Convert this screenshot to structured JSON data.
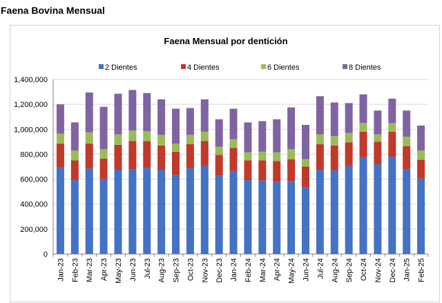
{
  "page": {
    "title": "Faena Bovina Mensual"
  },
  "chart_data": {
    "type": "bar",
    "stacked": true,
    "title": "Faena Mensual por dentición",
    "xlabel": "",
    "ylabel": "",
    "ylim": [
      0,
      1400000
    ],
    "yticks": [
      0,
      200000,
      400000,
      600000,
      800000,
      1000000,
      1200000,
      1400000
    ],
    "ytick_labels": [
      "0",
      "200,000",
      "400,000",
      "600,000",
      "800,000",
      "1,000,000",
      "1,200,000",
      "1,400,000"
    ],
    "grid": true,
    "legend_position": "top",
    "categories": [
      "Jan-23",
      "Feb-23",
      "Mar-23",
      "Apr-23",
      "May-23",
      "Jun-23",
      "Jul-23",
      "Aug-23",
      "Sep-23",
      "Oct-23",
      "Nov-23",
      "Dec-23",
      "Jan-24",
      "Feb-24",
      "Mar-24",
      "Apr-24",
      "May-24",
      "Jun-24",
      "Jul-24",
      "Aug-24",
      "Sep-24",
      "Oct-24",
      "Nov-24",
      "Dec-24",
      "Jan-25",
      "Feb-25"
    ],
    "series": [
      {
        "name": "2 Dientes",
        "color": "#4472c4",
        "values": [
          695000,
          595000,
          685000,
          600000,
          675000,
          680000,
          690000,
          675000,
          635000,
          690000,
          705000,
          630000,
          665000,
          595000,
          590000,
          580000,
          585000,
          535000,
          675000,
          670000,
          705000,
          775000,
          720000,
          780000,
          680000,
          605000
        ]
      },
      {
        "name": "4 Dientes",
        "color": "#c0392b",
        "values": [
          190000,
          155000,
          200000,
          165000,
          200000,
          225000,
          215000,
          195000,
          185000,
          190000,
          200000,
          165000,
          185000,
          155000,
          160000,
          165000,
          175000,
          165000,
          205000,
          200000,
          190000,
          205000,
          180000,
          200000,
          185000,
          150000
        ]
      },
      {
        "name": "6 Dientes",
        "color": "#9bbb59",
        "values": [
          80000,
          80000,
          90000,
          75000,
          85000,
          85000,
          80000,
          85000,
          65000,
          75000,
          75000,
          65000,
          70000,
          65000,
          70000,
          70000,
          80000,
          60000,
          80000,
          75000,
          75000,
          70000,
          60000,
          70000,
          75000,
          75000
        ]
      },
      {
        "name": "8 Dientes",
        "color": "#8064a2",
        "values": [
          235000,
          225000,
          320000,
          340000,
          325000,
          325000,
          305000,
          285000,
          280000,
          215000,
          260000,
          220000,
          245000,
          240000,
          245000,
          265000,
          335000,
          275000,
          305000,
          270000,
          240000,
          230000,
          190000,
          195000,
          210000,
          200000
        ]
      }
    ]
  }
}
